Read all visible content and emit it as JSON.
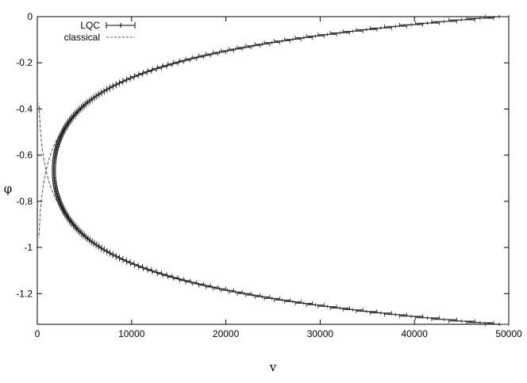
{
  "chart_data": {
    "type": "line",
    "title": "",
    "xlabel": "v",
    "ylabel": "φ",
    "xlim": [
      0,
      50000
    ],
    "ylim": [
      -1.333,
      0
    ],
    "x_ticks": [
      0,
      10000,
      20000,
      30000,
      40000,
      50000
    ],
    "x_tick_labels": [
      "0",
      "10000",
      "20000",
      "30000",
      "40000",
      "50000"
    ],
    "y_ticks": [
      0,
      -0.2,
      -0.4,
      -0.6,
      -0.8,
      -1,
      -1.2
    ],
    "y_tick_labels": [
      "0",
      "-0.2",
      "-0.4",
      "-0.6",
      "-0.8",
      "-1",
      "-1.2"
    ],
    "grid": false,
    "legend_position": "top-left",
    "series": [
      {
        "name": "LQC",
        "style": "solid-with-errorbars",
        "color": "#000000",
        "v_min": 1750,
        "phi_bounce": -0.6665,
        "v_max": 49000,
        "phi_top": 0,
        "phi_bottom": -1.333
      },
      {
        "name": "classical",
        "style": "dashed",
        "color": "#555555",
        "phi_bounce": -0.6665,
        "v_at_bounce": 0,
        "v_max": 49000
      }
    ]
  }
}
